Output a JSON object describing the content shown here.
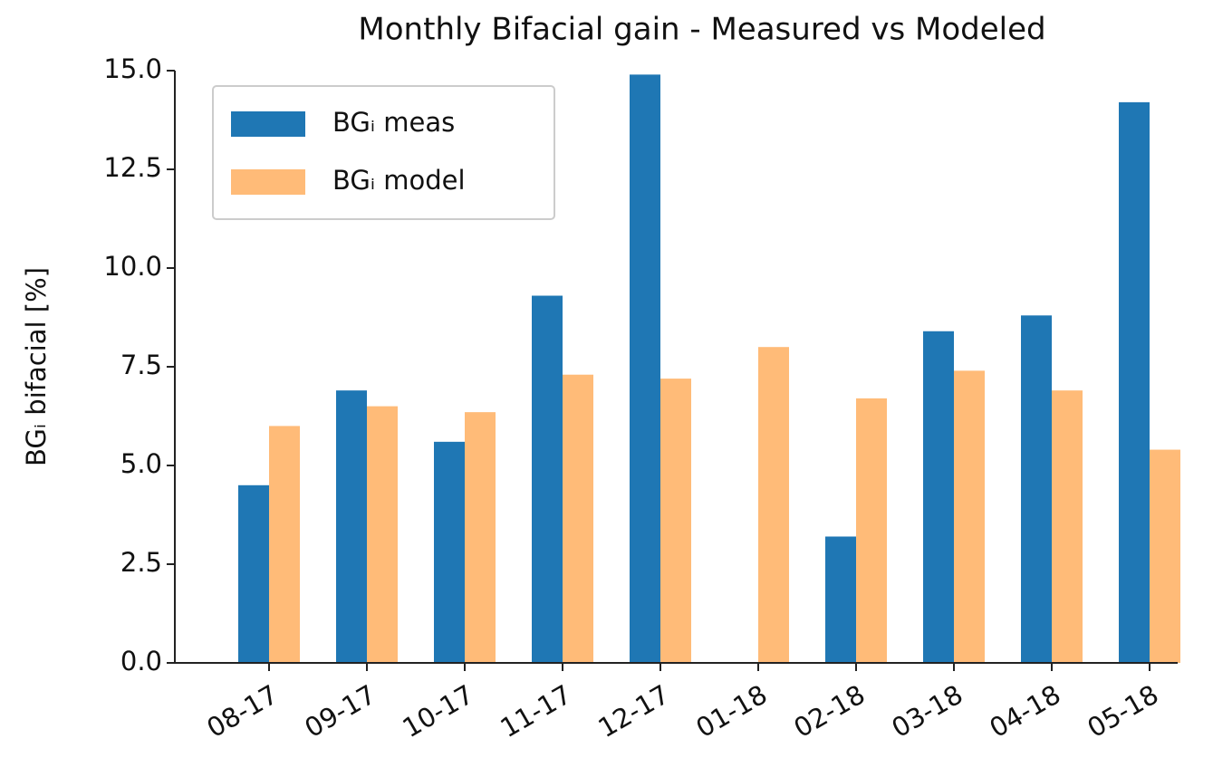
{
  "chart_data": {
    "type": "bar",
    "title": "Monthly Bifacial gain - Measured vs Modeled",
    "y_label": "BGᵢ bifacial [%]",
    "categories": [
      "08-17",
      "09-17",
      "10-17",
      "11-17",
      "12-17",
      "01-18",
      "02-18",
      "03-18",
      "04-18",
      "05-18"
    ],
    "series": [
      {
        "name": "BGᵢ meas",
        "color": "#1f77b4",
        "values": [
          4.5,
          6.9,
          5.6,
          9.3,
          14.9,
          null,
          3.2,
          8.4,
          8.8,
          14.2
        ]
      },
      {
        "name": "BGᵢ model",
        "color": "#ffbb78",
        "values": [
          6.0,
          6.5,
          6.35,
          7.3,
          7.2,
          8.0,
          6.7,
          7.4,
          6.9,
          5.4
        ]
      }
    ],
    "ylim": [
      0,
      15
    ],
    "yticks": [
      {
        "value": 0,
        "label": "0.0"
      },
      2.5,
      {
        "value": 5,
        "label": "5.0"
      },
      7.5,
      {
        "value": 10,
        "label": "10.0"
      },
      12.5,
      {
        "value": 15,
        "label": "15.0"
      }
    ],
    "legend": "upper left"
  }
}
